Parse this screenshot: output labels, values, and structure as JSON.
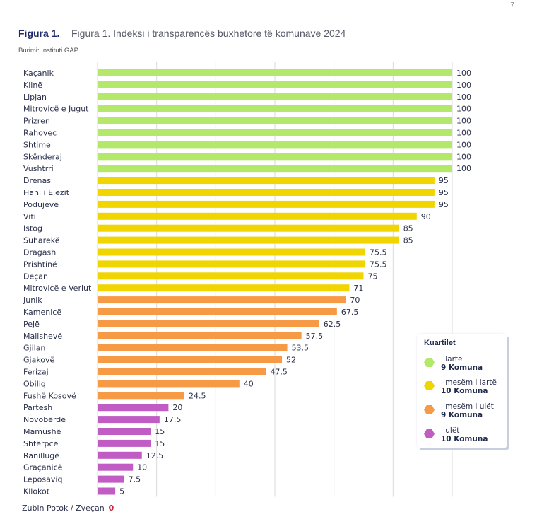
{
  "page_number": "7",
  "figure": {
    "label": "Figura 1.",
    "title": "Figura 1. Indeksi i transparencës buxhetore të komunave 2024",
    "source": "Burimi: Instituti GAP"
  },
  "colors": {
    "i_larte": "#b3e86b",
    "i_mesem_i_larte": "#f0d500",
    "i_mesem_i_ulet": "#f79a45",
    "i_ulet": "#c05cc4",
    "gridline": "#dadada",
    "footnote_zero": "#c0293b"
  },
  "chart_data": {
    "type": "bar",
    "orientation": "horizontal",
    "title": "Figura 1. Indeksi i transparencës buxhetore të komunave 2024",
    "xlabel": "",
    "ylabel": "",
    "xlim": [
      0,
      100
    ],
    "grid": true,
    "grid_divisions": 6,
    "legend_position": "right",
    "categories": [
      "Kaçanik",
      "Klinë",
      "Lipjan",
      "Mitrovicë e Jugut",
      "Prizren",
      "Rahovec",
      "Shtime",
      "Skënderaj",
      "Vushtrri",
      "Drenas",
      "Hani i Elezit",
      "Podujevë",
      "Viti",
      "Istog",
      "Suharekë",
      "Dragash",
      "Prishtinë",
      "Deçan",
      "Mitrovicë e Veriut",
      "Junik",
      "Kamenicë",
      "Pejë",
      "Malishevë",
      "Gjilan",
      "Gjakovë",
      "Ferizaj",
      "Obiliq",
      "Fushë Kosovë",
      "Partesh",
      "Novobërdë",
      "Mamushë",
      "Shtërpcë",
      "Ranillugë",
      "Graçanicë",
      "Leposaviq",
      "Kllokot"
    ],
    "values": [
      100,
      100,
      100,
      100,
      100,
      100,
      100,
      100,
      100,
      95,
      95,
      95,
      90,
      85,
      85,
      75.5,
      75.5,
      75,
      71,
      70,
      67.5,
      62.5,
      57.5,
      53.5,
      52,
      47.5,
      40,
      24.5,
      20,
      17.5,
      15,
      15,
      12.5,
      10,
      7.5,
      5
    ],
    "value_labels": [
      "100",
      "100",
      "100",
      "100",
      "100",
      "100",
      "100",
      "100",
      "100",
      "95",
      "95",
      "95",
      "90",
      "85",
      "85",
      "75.5",
      "75.5",
      "75",
      "71",
      "70",
      "67.5",
      "62.5",
      "57.5",
      "53.5",
      "52",
      "47.5",
      "40",
      "24.5",
      "20",
      "17.5",
      "15",
      "15",
      "12.5",
      "10",
      "7.5",
      "5"
    ],
    "quartile": [
      "i_larte",
      "i_larte",
      "i_larte",
      "i_larte",
      "i_larte",
      "i_larte",
      "i_larte",
      "i_larte",
      "i_larte",
      "i_mesem_i_larte",
      "i_mesem_i_larte",
      "i_mesem_i_larte",
      "i_mesem_i_larte",
      "i_mesem_i_larte",
      "i_mesem_i_larte",
      "i_mesem_i_larte",
      "i_mesem_i_larte",
      "i_mesem_i_larte",
      "i_mesem_i_larte",
      "i_mesem_i_ulet",
      "i_mesem_i_ulet",
      "i_mesem_i_ulet",
      "i_mesem_i_ulet",
      "i_mesem_i_ulet",
      "i_mesem_i_ulet",
      "i_mesem_i_ulet",
      "i_mesem_i_ulet",
      "i_mesem_i_ulet",
      "i_ulet",
      "i_ulet",
      "i_ulet",
      "i_ulet",
      "i_ulet",
      "i_ulet",
      "i_ulet",
      "i_ulet"
    ],
    "footnote": {
      "label": "Zubin Potok / Zveçan",
      "value": "0"
    }
  },
  "legend": {
    "title": "Kuartilet",
    "items": [
      {
        "key": "i_larte",
        "name": "i lartë",
        "count": "9 Komuna"
      },
      {
        "key": "i_mesem_i_larte",
        "name": "i mesëm i lartë",
        "count": "10 Komuna"
      },
      {
        "key": "i_mesem_i_ulet",
        "name": "i mesëm i ulët",
        "count": "9 Komuna"
      },
      {
        "key": "i_ulet",
        "name": "i ulët",
        "count": "10 Komuna"
      }
    ]
  }
}
